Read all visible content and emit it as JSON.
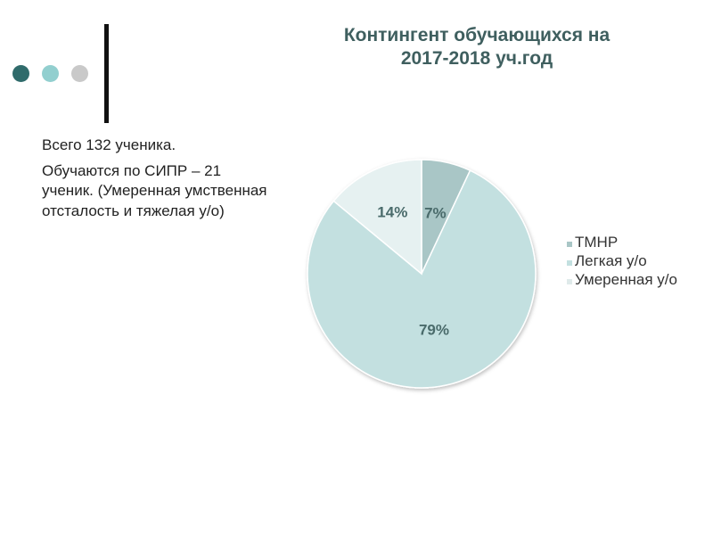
{
  "decor": {
    "dot_colors": [
      "#2f6b6b",
      "#92cfcf",
      "#c9c9c9"
    ]
  },
  "text": {
    "line1": "Всего 132 ученика.",
    "line2": "Обучаются по СИПР – 21 ученик. (Умеренная умственная отсталость и тяжелая у/о)"
  },
  "chart_data": {
    "type": "pie",
    "title_lines": [
      "Контингент обучающихся на",
      "2017-2018 уч.год"
    ],
    "slices": [
      {
        "label": "ТМНР",
        "value": 7,
        "value_label": "7%",
        "color": "#a9c6c6"
      },
      {
        "label": "Легкая у/о",
        "value": 79,
        "value_label": "79%",
        "color": "#c3e0e0"
      },
      {
        "label": "Умеренная у/о",
        "value": 14,
        "value_label": "14%",
        "color": "#e6f1f1"
      }
    ],
    "legend_position": "right"
  }
}
